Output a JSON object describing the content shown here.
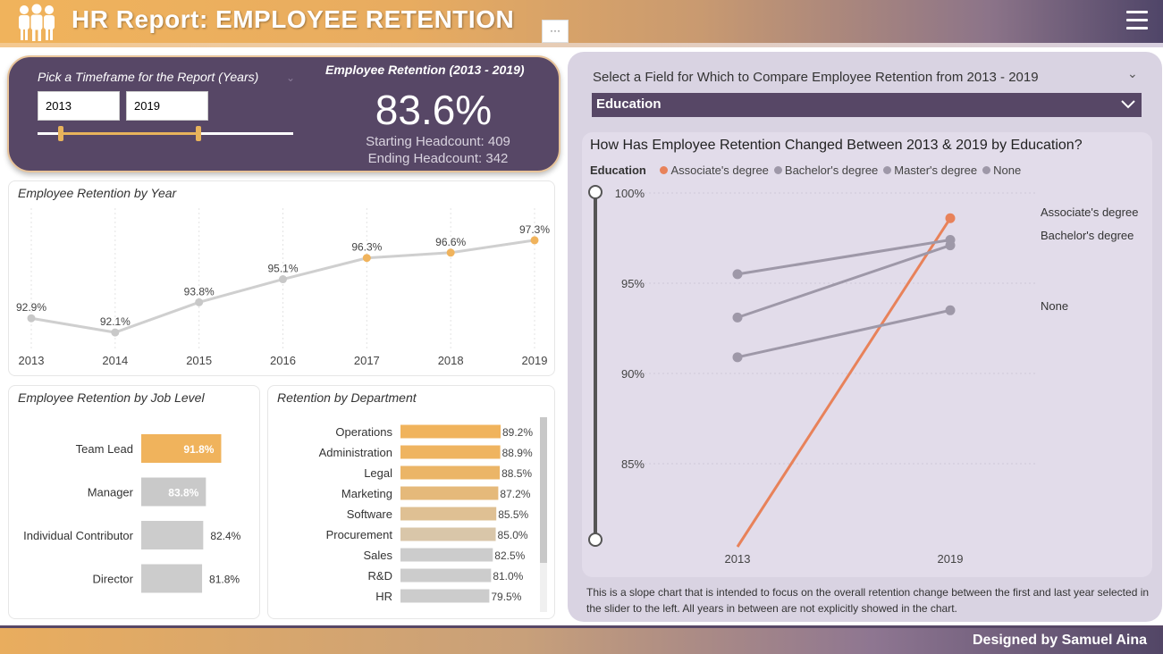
{
  "header": {
    "title": "HR Report: EMPLOYEE RETENTION",
    "more_label": "···"
  },
  "kpi": {
    "timeframe_label": "Pick a Timeframe for the Report (Years)",
    "start_year": "2013",
    "end_year": "2019",
    "retention_title": "Employee Retention (2013 - 2019)",
    "retention_value": "83.6%",
    "starting_headcount": "Starting Headcount: 409",
    "ending_headcount": "Ending Headcount: 342"
  },
  "by_year": {
    "title": "Employee Retention by Year",
    "accent": "#f0b35c",
    "line_color": "#cfcfcf"
  },
  "by_job_level": {
    "title": "Employee Retention by Job Level"
  },
  "by_department": {
    "title": "Retention by Department"
  },
  "compare": {
    "field_label": "Select a Field for Which to Compare Employee Retention from 2013 - 2019",
    "selected_field": "Education",
    "chart_title": "How Has Employee Retention Changed Between 2013 & 2019 by Education?",
    "legend_title": "Education",
    "note": "This is a slope chart that is intended to focus on the overall retention change between the first and last year selected in the slider to the left. All years in between are not explicitly showed in the chart."
  },
  "footer": {
    "credit": "Designed by Samuel Aina"
  },
  "colors": {
    "purple": "#574766",
    "gold": "#f0b35c",
    "grey": "#cccccc",
    "orange": "#e8825a",
    "slate": "#9e98a8"
  },
  "chart_data": [
    {
      "type": "line",
      "title": "Employee Retention by Year",
      "categories": [
        "2013",
        "2014",
        "2015",
        "2016",
        "2017",
        "2018",
        "2019"
      ],
      "values": [
        92.9,
        92.1,
        93.8,
        95.1,
        96.3,
        96.6,
        97.3
      ],
      "labels": [
        "92.9%",
        "92.1%",
        "93.8%",
        "95.1%",
        "96.3%",
        "96.6%",
        "97.3%"
      ],
      "ylim": [
        91.5,
        98
      ]
    },
    {
      "type": "bar",
      "orientation": "horizontal",
      "title": "Employee Retention by Job Level",
      "categories": [
        "Team Lead",
        "Manager",
        "Individual Contributor",
        "Director"
      ],
      "values": [
        91.8,
        83.8,
        82.4,
        81.8
      ],
      "labels": [
        "91.8%",
        "83.8%",
        "82.4%",
        "81.8%"
      ],
      "highlight_index": 0
    },
    {
      "type": "bar",
      "orientation": "horizontal",
      "title": "Retention by Department",
      "categories": [
        "Operations",
        "Administration",
        "Legal",
        "Marketing",
        "Software",
        "Procurement",
        "Sales",
        "R&D",
        "HR"
      ],
      "values": [
        89.2,
        88.9,
        88.5,
        87.2,
        85.5,
        85.0,
        82.5,
        81.0,
        79.5
      ],
      "labels": [
        "89.2%",
        "88.9%",
        "88.5%",
        "87.2%",
        "85.5%",
        "85.0%",
        "82.5%",
        "81.0%",
        "79.5%"
      ]
    },
    {
      "type": "line",
      "subtype": "slope",
      "title": "How Has Employee Retention Changed Between 2013 & 2019 by Education?",
      "x": [
        "2013",
        "2019"
      ],
      "y_ticks": [
        "100%",
        "95%",
        "90%",
        "85%"
      ],
      "ylim": [
        80.3,
        100
      ],
      "series": [
        {
          "name": "Associate's degree",
          "values": [
            80.3,
            98.6
          ],
          "color": "#e8825a",
          "end_label": "Associate's degree"
        },
        {
          "name": "Bachelor's degree",
          "values": [
            95.5,
            97.4
          ],
          "color": "#9e98a8",
          "end_label": "Bachelor's degree"
        },
        {
          "name": "Master's degree",
          "values": [
            93.1,
            97.1
          ],
          "color": "#9e98a8",
          "end_label": ""
        },
        {
          "name": "None",
          "values": [
            90.9,
            93.5
          ],
          "color": "#9e98a8",
          "end_label": "None"
        }
      ]
    }
  ]
}
